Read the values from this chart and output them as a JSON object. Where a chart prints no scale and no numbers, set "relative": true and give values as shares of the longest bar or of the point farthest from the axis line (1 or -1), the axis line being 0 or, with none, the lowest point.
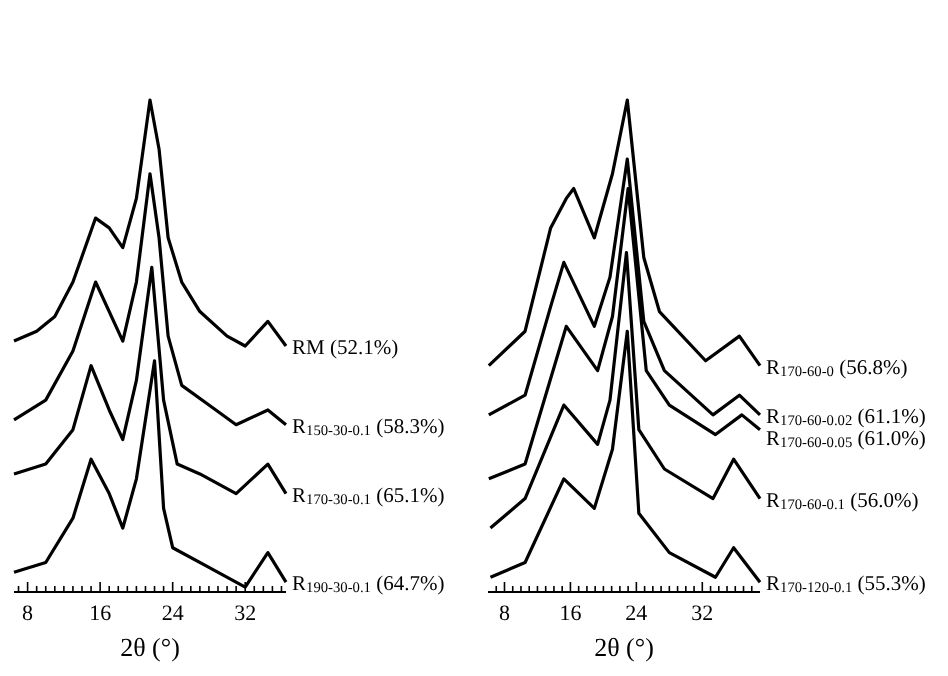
{
  "chart_data": [
    {
      "type": "line",
      "relative": true,
      "xlabel": "2θ (°)",
      "xlim": [
        6.5,
        36.5
      ],
      "xticks": [
        {
          "value": 7,
          "label": null
        },
        8,
        {
          "value": 9,
          "label": null
        },
        {
          "value": 10,
          "label": null
        },
        {
          "value": 11,
          "label": null
        },
        {
          "value": 12,
          "label": null
        },
        {
          "value": 13,
          "label": null
        },
        {
          "value": 14,
          "label": null
        },
        {
          "value": 15,
          "label": null
        },
        16,
        {
          "value": 17,
          "label": null
        },
        {
          "value": 18,
          "label": null
        },
        {
          "value": 19,
          "label": null
        },
        {
          "value": 20,
          "label": null
        },
        {
          "value": 21,
          "label": null
        },
        {
          "value": 22,
          "label": null
        },
        {
          "value": 23,
          "label": null
        },
        24,
        {
          "value": 25,
          "label": null
        },
        {
          "value": 26,
          "label": null
        },
        {
          "value": 27,
          "label": null
        },
        {
          "value": 28,
          "label": null
        },
        {
          "value": 29,
          "label": null
        },
        {
          "value": 30,
          "label": null
        },
        {
          "value": 31,
          "label": null
        },
        32,
        {
          "value": 33,
          "label": null
        },
        {
          "value": 34,
          "label": null
        },
        {
          "value": 35,
          "label": null
        },
        {
          "value": 36,
          "label": null
        }
      ],
      "legend": false,
      "marker": "none",
      "line_style": "solid",
      "series": [
        {
          "name": "RM (52.1%)",
          "color": "#000000",
          "x": [
            6.5,
            9,
            11,
            13,
            15.5,
            17,
            18.5,
            20,
            21.5,
            22.5,
            23.5,
            25,
            27,
            30,
            32,
            34.5,
            36.5
          ],
          "values": [
            0.51,
            0.53,
            0.56,
            0.63,
            0.76,
            0.74,
            0.7,
            0.8,
            1.0,
            0.9,
            0.72,
            0.63,
            0.57,
            0.52,
            0.5,
            0.55,
            0.5
          ]
        },
        {
          "name": "R$_{150-30-0.1}$ (58.3%)",
          "color": "#000000",
          "x": [
            6.5,
            10,
            13,
            15.5,
            18.5,
            20,
            21.5,
            22.5,
            23.5,
            25,
            28,
            31,
            34.5,
            36.5
          ],
          "values": [
            0.35,
            0.39,
            0.49,
            0.63,
            0.51,
            0.63,
            0.85,
            0.72,
            0.52,
            0.42,
            0.38,
            0.34,
            0.37,
            0.34
          ]
        },
        {
          "name": "R$_{170-30-0.1}$ (65.1%)",
          "color": "#000000",
          "x": [
            6.5,
            10,
            13,
            15,
            17,
            18.5,
            20,
            21.7,
            23,
            24.5,
            27,
            31,
            34.5,
            36.5
          ],
          "values": [
            0.24,
            0.26,
            0.33,
            0.46,
            0.37,
            0.31,
            0.43,
            0.66,
            0.39,
            0.26,
            0.24,
            0.2,
            0.26,
            0.2
          ]
        },
        {
          "name": "R$_{190-30-0.1}$ (64.7%)",
          "color": "#000000",
          "x": [
            6.5,
            10,
            13,
            15,
            17,
            18.5,
            20,
            22,
            23,
            24,
            28,
            32,
            34.5,
            36.5
          ],
          "values": [
            0.04,
            0.06,
            0.15,
            0.27,
            0.2,
            0.13,
            0.23,
            0.47,
            0.17,
            0.09,
            0.05,
            0.01,
            0.08,
            0.02
          ]
        }
      ]
    },
    {
      "type": "line",
      "relative": true,
      "xlabel": "2θ (°)",
      "xlim": [
        6,
        39
      ],
      "xticks": [
        {
          "value": 7,
          "label": null
        },
        8,
        {
          "value": 9,
          "label": null
        },
        {
          "value": 10,
          "label": null
        },
        {
          "value": 11,
          "label": null
        },
        {
          "value": 12,
          "label": null
        },
        {
          "value": 13,
          "label": null
        },
        {
          "value": 14,
          "label": null
        },
        {
          "value": 15,
          "label": null
        },
        16,
        {
          "value": 17,
          "label": null
        },
        {
          "value": 18,
          "label": null
        },
        {
          "value": 19,
          "label": null
        },
        {
          "value": 20,
          "label": null
        },
        {
          "value": 21,
          "label": null
        },
        {
          "value": 22,
          "label": null
        },
        {
          "value": 23,
          "label": null
        },
        24,
        {
          "value": 25,
          "label": null
        },
        {
          "value": 26,
          "label": null
        },
        {
          "value": 27,
          "label": null
        },
        {
          "value": 28,
          "label": null
        },
        {
          "value": 29,
          "label": null
        },
        {
          "value": 30,
          "label": null
        },
        {
          "value": 31,
          "label": null
        },
        32,
        {
          "value": 33,
          "label": null
        },
        {
          "value": 34,
          "label": null
        },
        {
          "value": 35,
          "label": null
        },
        {
          "value": 36,
          "label": null
        },
        {
          "value": 37,
          "label": null
        },
        {
          "value": 38,
          "label": null
        }
      ],
      "legend": false,
      "marker": "none",
      "line_style": "solid",
      "series": [
        {
          "name": "R$_{170-60-0}$ (56.8%)",
          "color": "#000000",
          "x": [
            6.1,
            10.5,
            13.6,
            15.5,
            16.4,
            18.9,
            21.1,
            22.9,
            24.9,
            26.8,
            32.4,
            36.5,
            39
          ],
          "values": [
            0.46,
            0.53,
            0.74,
            0.8,
            0.82,
            0.72,
            0.85,
            1.0,
            0.68,
            0.57,
            0.47,
            0.52,
            0.46
          ]
        },
        {
          "name": "R$_{170-60-0.02}$ (61.1%)",
          "color": "#000000",
          "x": [
            6.1,
            10.5,
            13.6,
            15.2,
            18.9,
            20.8,
            22.9,
            24.9,
            27.4,
            33.3,
            36.5,
            39
          ],
          "values": [
            0.36,
            0.4,
            0.58,
            0.67,
            0.54,
            0.64,
            0.88,
            0.55,
            0.45,
            0.36,
            0.4,
            0.36
          ]
        },
        {
          "name": "R$_{170-60-0.05}$ (61.0%)",
          "color": "#000000",
          "x": [
            6.1,
            10.5,
            15.5,
            19.3,
            21.1,
            23,
            25.2,
            28,
            33.6,
            36.8,
            39
          ],
          "values": [
            0.23,
            0.26,
            0.54,
            0.45,
            0.56,
            0.82,
            0.45,
            0.38,
            0.32,
            0.36,
            0.33
          ]
        },
        {
          "name": "R$_{170-60-0.1}$ (56.0%)",
          "color": "#000000",
          "x": [
            6.3,
            10.5,
            15.2,
            19.3,
            20.8,
            22.8,
            24.3,
            27.4,
            33.3,
            35.8,
            39
          ],
          "values": [
            0.13,
            0.19,
            0.38,
            0.3,
            0.39,
            0.69,
            0.33,
            0.25,
            0.19,
            0.27,
            0.19
          ]
        },
        {
          "name": "R$_{170-120-0.1}$ (55.3%)",
          "color": "#000000",
          "x": [
            6.3,
            10.5,
            15.2,
            18.9,
            21.1,
            22.9,
            24.3,
            28,
            33.6,
            35.8,
            39
          ],
          "values": [
            0.03,
            0.06,
            0.23,
            0.17,
            0.29,
            0.53,
            0.16,
            0.08,
            0.03,
            0.09,
            0.02
          ]
        }
      ]
    }
  ]
}
